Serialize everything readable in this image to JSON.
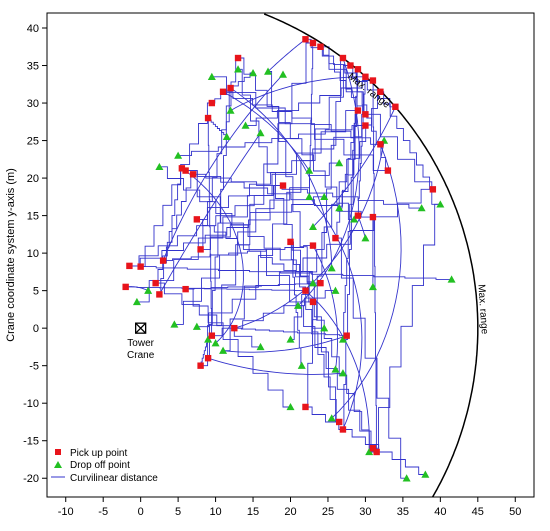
{
  "chart_data": {
    "type": "scatter",
    "title": "",
    "xlabel": "",
    "ylabel": "Crane coordinate system y-axis (m)",
    "xlim": [
      -12.5,
      52.5
    ],
    "ylim": [
      -22.5,
      42
    ],
    "xticks": [
      -10,
      -5,
      0,
      5,
      10,
      15,
      20,
      25,
      30,
      35,
      40,
      45,
      50
    ],
    "yticks": [
      -20,
      -15,
      -10,
      -5,
      0,
      5,
      10,
      15,
      20,
      25,
      30,
      35,
      40
    ],
    "grid": false,
    "legend_position": "bottom-left",
    "colors": {
      "pickup": "#e8141b",
      "dropoff": "#22c022",
      "path": "#3333cc",
      "range": "#000000"
    },
    "crane": {
      "x": 0,
      "y": 0,
      "label_line1": "Tower",
      "label_line2": "Crane",
      "icon": "crossed-square-icon"
    },
    "max_range": {
      "radius": 45,
      "label": "Max. range"
    },
    "series": [
      {
        "name": "Pick up point",
        "marker": "square",
        "points": [
          [
            22,
            38.5
          ],
          [
            23,
            38
          ],
          [
            24,
            37.5
          ],
          [
            27,
            36
          ],
          [
            28,
            35
          ],
          [
            29,
            34.5
          ],
          [
            30,
            33.5
          ],
          [
            31,
            33
          ],
          [
            32,
            31.5
          ],
          [
            34,
            29.5
          ],
          [
            29,
            29
          ],
          [
            30,
            28.5
          ],
          [
            32,
            24.5
          ],
          [
            33,
            21
          ],
          [
            30,
            27
          ],
          [
            29,
            15
          ],
          [
            31,
            14.8
          ],
          [
            39,
            18.5
          ],
          [
            23,
            11
          ],
          [
            26,
            12
          ],
          [
            9.5,
            30
          ],
          [
            11,
            31.5
          ],
          [
            7,
            20.5
          ],
          [
            7.5,
            14.5
          ],
          [
            5.5,
            21.3
          ],
          [
            6,
            21
          ],
          [
            8,
            10.5
          ],
          [
            3,
            9
          ],
          [
            -1.5,
            8.3
          ],
          [
            0,
            8.2
          ],
          [
            -2,
            5.5
          ],
          [
            2,
            6
          ],
          [
            6,
            5.2
          ],
          [
            2.5,
            4.5
          ],
          [
            9,
            28
          ],
          [
            13,
            36
          ],
          [
            12,
            32
          ],
          [
            19,
            19
          ],
          [
            20,
            11.5
          ],
          [
            22,
            5
          ],
          [
            23,
            3.5
          ],
          [
            24,
            6
          ],
          [
            12.5,
            0
          ],
          [
            9.5,
            -1
          ],
          [
            8,
            -5
          ],
          [
            9,
            -4
          ],
          [
            22,
            -10.5
          ],
          [
            26.5,
            -12.5
          ],
          [
            27,
            -13.5
          ],
          [
            31,
            -16
          ],
          [
            31.5,
            -16.5
          ],
          [
            27.5,
            -1
          ]
        ]
      },
      {
        "name": "Drop off point",
        "marker": "triangle",
        "points": [
          [
            9.5,
            33.5
          ],
          [
            13,
            34.5
          ],
          [
            15,
            34
          ],
          [
            17,
            34.2
          ],
          [
            19,
            33.8
          ],
          [
            14,
            27
          ],
          [
            11.5,
            25.5
          ],
          [
            5,
            23
          ],
          [
            2.5,
            21.5
          ],
          [
            22.5,
            21
          ],
          [
            22.5,
            17.5
          ],
          [
            24.5,
            17.5
          ],
          [
            26.5,
            16
          ],
          [
            28.5,
            14.5
          ],
          [
            30,
            12
          ],
          [
            32.5,
            25
          ],
          [
            37.5,
            16
          ],
          [
            40,
            16.5
          ],
          [
            41.5,
            6.5
          ],
          [
            23,
            13.5
          ],
          [
            25.5,
            8
          ],
          [
            31,
            5.5
          ],
          [
            26,
            5
          ],
          [
            23,
            6
          ],
          [
            21,
            3
          ],
          [
            1,
            5
          ],
          [
            -0.5,
            3.5
          ],
          [
            4.5,
            0.5
          ],
          [
            7.5,
            0.2
          ],
          [
            9,
            -1.5
          ],
          [
            10,
            -2
          ],
          [
            11,
            -3
          ],
          [
            16,
            -2.5
          ],
          [
            20,
            -1.5
          ],
          [
            21.5,
            -5
          ],
          [
            26,
            -5.5
          ],
          [
            27,
            -6
          ],
          [
            24.5,
            0
          ],
          [
            27,
            -1.5
          ],
          [
            20,
            -10.5
          ],
          [
            25.5,
            -12
          ],
          [
            30.5,
            -16.5
          ],
          [
            35.5,
            -20
          ],
          [
            38,
            -19.5
          ],
          [
            26.5,
            22
          ],
          [
            12,
            29
          ],
          [
            16,
            26
          ]
        ]
      },
      {
        "name": "Curvilinear distance",
        "marker": "line"
      }
    ]
  }
}
